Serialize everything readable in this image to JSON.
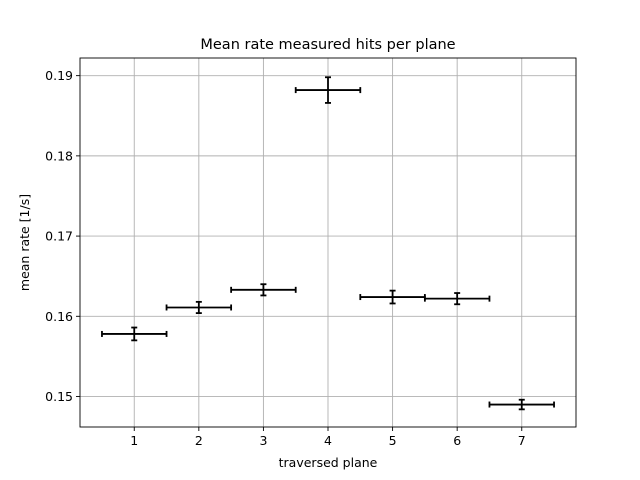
{
  "chart_data": {
    "type": "scatter",
    "title": "Mean rate measured hits per plane",
    "xlabel": "traversed plane",
    "ylabel": "mean rate [1/s]",
    "xlim": [
      0.16,
      7.84
    ],
    "ylim": [
      0.1462,
      0.1922
    ],
    "xticks": [
      1,
      2,
      3,
      4,
      5,
      6,
      7
    ],
    "xtick_labels": [
      "1",
      "2",
      "3",
      "4",
      "5",
      "6",
      "7"
    ],
    "yticks": [
      0.15,
      0.16,
      0.17,
      0.18,
      0.19
    ],
    "ytick_labels": [
      "0.15",
      "0.16",
      "0.17",
      "0.18",
      "0.19"
    ],
    "grid": true,
    "series": [
      {
        "x": [
          1,
          2,
          3,
          4,
          5,
          6,
          7
        ],
        "y": [
          0.1578,
          0.1611,
          0.1633,
          0.1882,
          0.1624,
          0.1622,
          0.149
        ],
        "xerr": [
          0.5,
          0.5,
          0.5,
          0.5,
          0.5,
          0.5,
          0.5
        ],
        "yerr": [
          0.0008,
          0.0007,
          0.0007,
          0.0016,
          0.0008,
          0.0007,
          0.0006
        ],
        "color": "#000000"
      }
    ]
  }
}
